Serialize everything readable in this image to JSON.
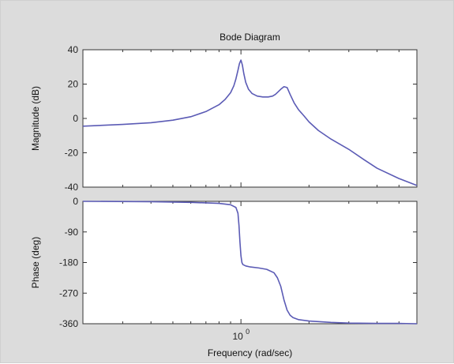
{
  "chart_data": [
    {
      "type": "line",
      "title": "Bode Diagram",
      "xlabel": "",
      "ylabel": "Magnitude (dB)",
      "xscale": "log",
      "xlim": [
        0.2,
        6
      ],
      "ylim": [
        -40,
        40
      ],
      "yticks": [
        40,
        20,
        0,
        -20,
        -40
      ],
      "xtick_labels": [],
      "grid": false,
      "line_color": "#5b5bb5",
      "series": [
        {
          "x": [
            0.2,
            0.3,
            0.4,
            0.5,
            0.6,
            0.7,
            0.8,
            0.85,
            0.9,
            0.93,
            0.95,
            0.97,
            0.985,
            1.0,
            1.015,
            1.03,
            1.05,
            1.08,
            1.12,
            1.18,
            1.25,
            1.32,
            1.38,
            1.42,
            1.46,
            1.5,
            1.55,
            1.6,
            1.65,
            1.72,
            1.8,
            1.9,
            2.0,
            2.2,
            2.5,
            3.0,
            3.5,
            4.0,
            5.0,
            6.0
          ],
          "values": [
            -4.5,
            -3.5,
            -2.5,
            -1,
            1,
            4,
            8,
            11,
            15,
            19,
            23,
            28,
            32,
            34,
            31,
            26,
            21,
            17,
            14.5,
            13,
            12.5,
            12.5,
            13,
            14,
            15.5,
            17,
            18.5,
            18,
            14,
            9,
            5,
            1.5,
            -2,
            -7,
            -12,
            -18,
            -24,
            -29,
            -35,
            -39
          ]
        }
      ]
    },
    {
      "type": "line",
      "title": "",
      "xlabel": "Frequency  (rad/sec)",
      "ylabel": "Phase (deg)",
      "xscale": "log",
      "xlim": [
        0.2,
        6
      ],
      "ylim": [
        -360,
        0
      ],
      "yticks": [
        0,
        -90,
        -180,
        -270,
        -360
      ],
      "xtick_labels": [
        {
          "value": 1,
          "label": "10",
          "sup": "0"
        }
      ],
      "grid": false,
      "line_color": "#5b5bb5",
      "series": [
        {
          "x": [
            0.2,
            0.4,
            0.6,
            0.8,
            0.9,
            0.95,
            0.97,
            0.98,
            0.99,
            1.0,
            1.01,
            1.02,
            1.05,
            1.1,
            1.2,
            1.3,
            1.4,
            1.45,
            1.5,
            1.55,
            1.6,
            1.65,
            1.7,
            1.8,
            2.0,
            2.5,
            3.0,
            4.0,
            5.0,
            6.0
          ],
          "values": [
            0,
            -1,
            -3,
            -6,
            -10,
            -18,
            -35,
            -70,
            -120,
            -160,
            -180,
            -186,
            -190,
            -193,
            -196,
            -200,
            -210,
            -225,
            -250,
            -290,
            -320,
            -335,
            -342,
            -348,
            -352,
            -356,
            -358,
            -359,
            -359,
            -360
          ]
        }
      ]
    }
  ]
}
